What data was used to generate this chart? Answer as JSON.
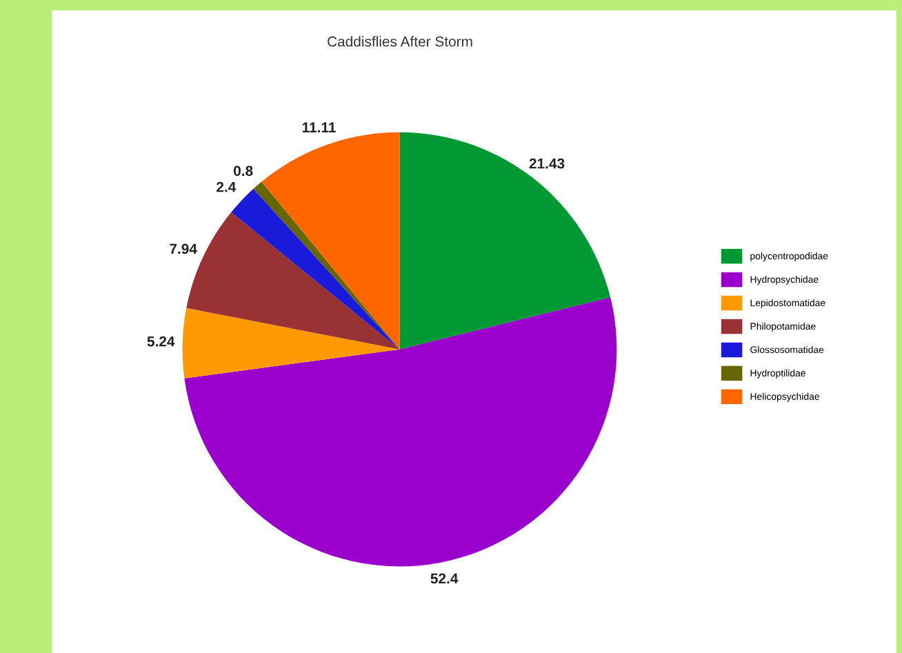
{
  "chart_data": {
    "type": "pie",
    "title": "Caddisflies After Storm",
    "categories": [
      "polycentropodidae",
      "Hydropsychidae",
      "Lepidostomatidae",
      "Philopotamidae",
      "Glossosomatidae",
      "Hydroptilidae",
      "Helicopsychidae"
    ],
    "values": [
      21.43,
      52.4,
      5.24,
      7.94,
      2.4,
      0.8,
      11.11
    ],
    "colors": [
      "#009933",
      "#9900cc",
      "#ff9900",
      "#993333",
      "#1a1adb",
      "#666600",
      "#ff6600"
    ],
    "data_labels": true,
    "legend": "right"
  }
}
